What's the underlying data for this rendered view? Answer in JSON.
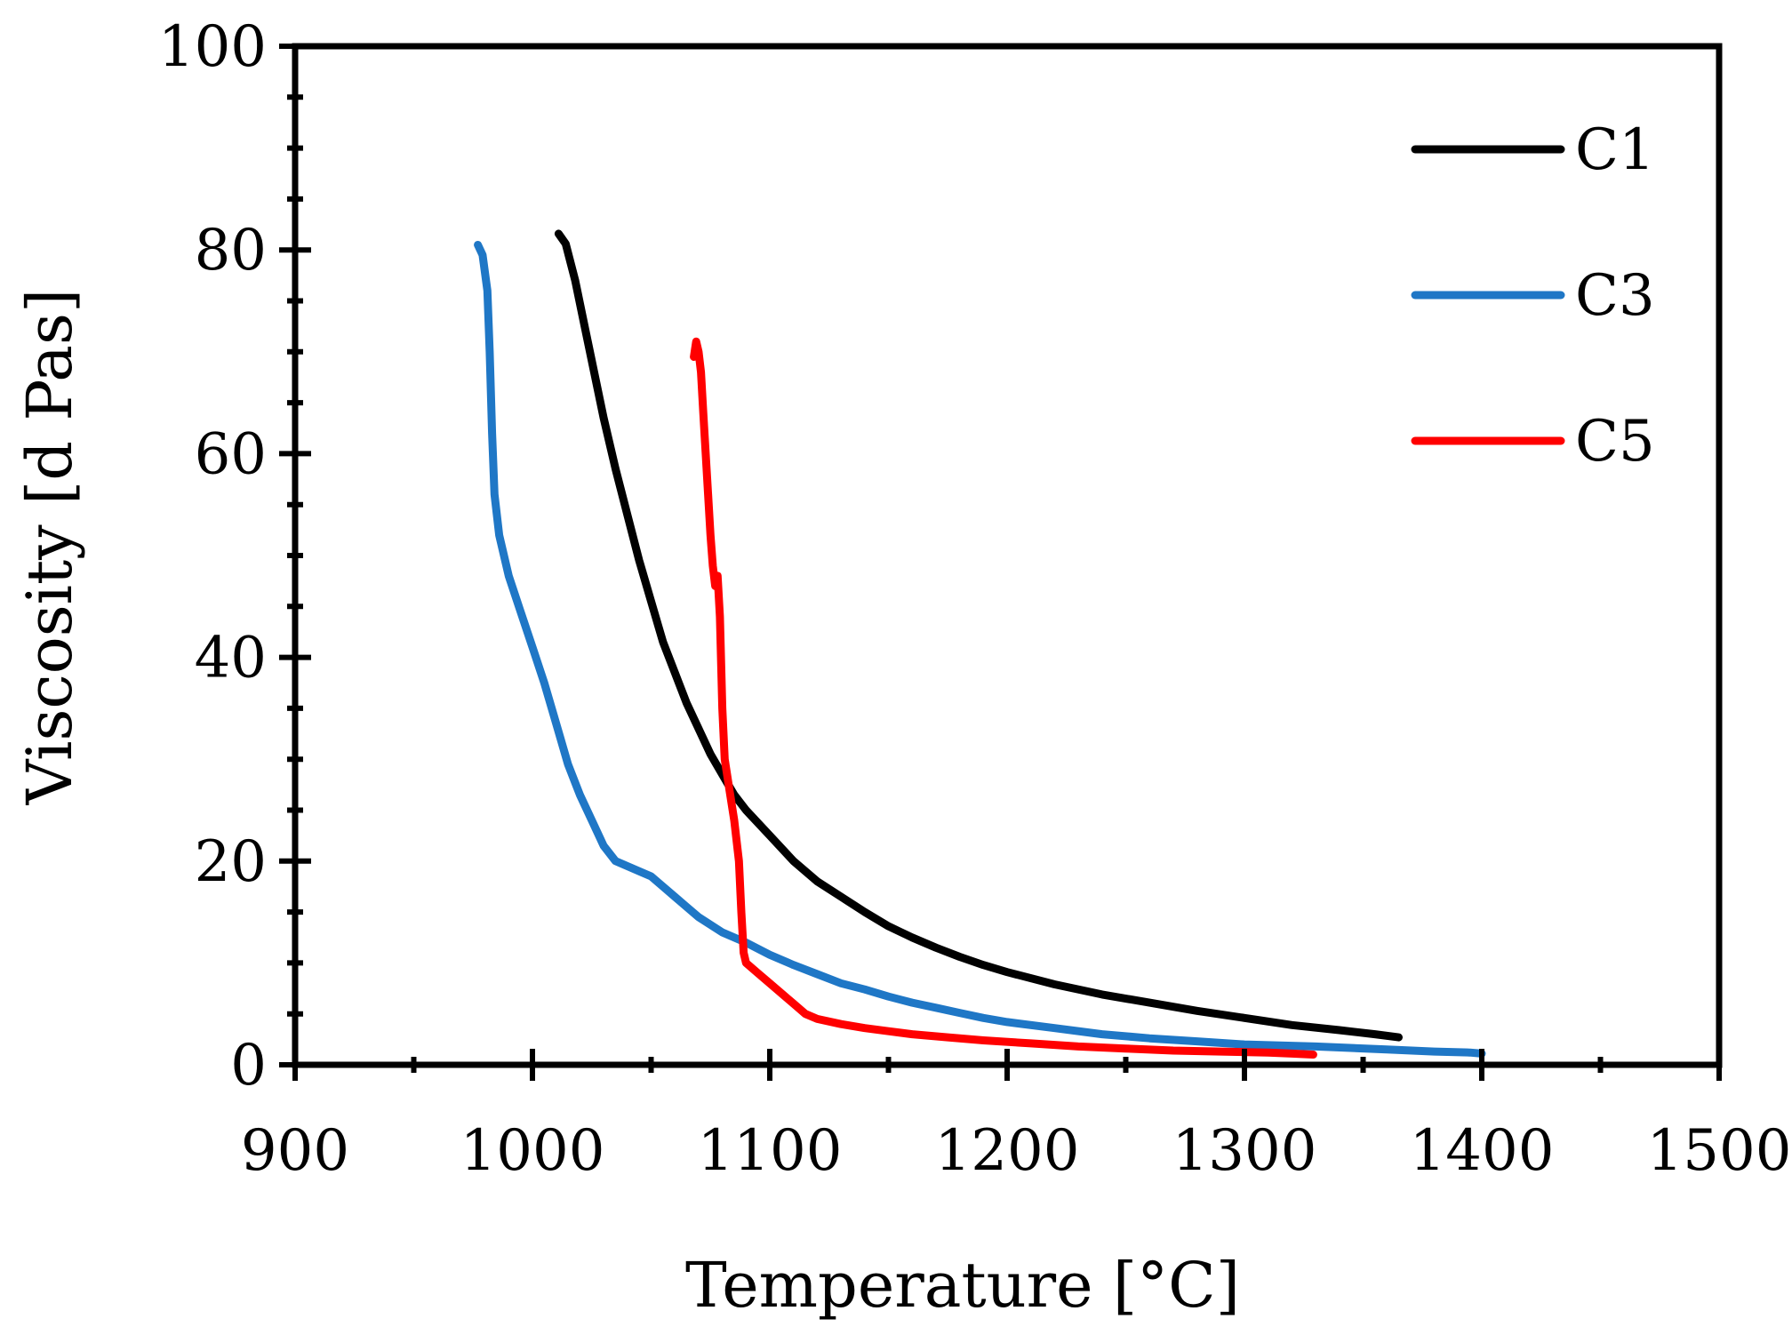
{
  "chart_data": {
    "type": "line",
    "title": "",
    "xlabel": "Temperature [°C]",
    "ylabel": "Viscosity [d Pas]",
    "xlim": [
      900,
      1500
    ],
    "ylim": [
      0,
      100
    ],
    "xticks": [
      900,
      1000,
      1100,
      1200,
      1300,
      1400,
      1500
    ],
    "yticks": [
      0,
      20,
      40,
      60,
      80,
      100
    ],
    "x_minor_step": 50,
    "y_minor_step": 5,
    "grid": false,
    "legend_position": "top-right",
    "series": [
      {
        "name": "C1",
        "color": "#000000",
        "points": [
          [
            1011,
            81.6
          ],
          [
            1014,
            80.6
          ],
          [
            1018,
            77
          ],
          [
            1022,
            72.5
          ],
          [
            1026,
            68
          ],
          [
            1030,
            63.5
          ],
          [
            1035,
            58.5
          ],
          [
            1040,
            54
          ],
          [
            1045,
            49.5
          ],
          [
            1050,
            45.5
          ],
          [
            1055,
            41.5
          ],
          [
            1060,
            38.5
          ],
          [
            1065,
            35.5
          ],
          [
            1070,
            33
          ],
          [
            1075,
            30.5
          ],
          [
            1080,
            28.5
          ],
          [
            1085,
            26.5
          ],
          [
            1090,
            25
          ],
          [
            1100,
            22.5
          ],
          [
            1110,
            20
          ],
          [
            1120,
            18
          ],
          [
            1130,
            16.5
          ],
          [
            1140,
            15
          ],
          [
            1150,
            13.6
          ],
          [
            1160,
            12.5
          ],
          [
            1170,
            11.5
          ],
          [
            1180,
            10.6
          ],
          [
            1190,
            9.8
          ],
          [
            1200,
            9.1
          ],
          [
            1220,
            7.9
          ],
          [
            1240,
            6.9
          ],
          [
            1260,
            6.1
          ],
          [
            1280,
            5.3
          ],
          [
            1300,
            4.6
          ],
          [
            1320,
            3.9
          ],
          [
            1340,
            3.4
          ],
          [
            1355,
            3
          ],
          [
            1365,
            2.7
          ]
        ]
      },
      {
        "name": "C3",
        "color": "#1f77c6",
        "points": [
          [
            977,
            80.5
          ],
          [
            979,
            79.5
          ],
          [
            981,
            76
          ],
          [
            982,
            70
          ],
          [
            983,
            62
          ],
          [
            984,
            56
          ],
          [
            986,
            52
          ],
          [
            990,
            48
          ],
          [
            995,
            44.5
          ],
          [
            1000,
            41
          ],
          [
            1005,
            37.5
          ],
          [
            1010,
            33.5
          ],
          [
            1015,
            29.5
          ],
          [
            1020,
            26.5
          ],
          [
            1025,
            24
          ],
          [
            1030,
            21.5
          ],
          [
            1035,
            20
          ],
          [
            1040,
            19.5
          ],
          [
            1045,
            19
          ],
          [
            1050,
            18.5
          ],
          [
            1055,
            17.5
          ],
          [
            1060,
            16.5
          ],
          [
            1065,
            15.5
          ],
          [
            1070,
            14.5
          ],
          [
            1080,
            13
          ],
          [
            1090,
            12
          ],
          [
            1100,
            10.8
          ],
          [
            1110,
            9.8
          ],
          [
            1120,
            8.9
          ],
          [
            1130,
            8
          ],
          [
            1140,
            7.4
          ],
          [
            1150,
            6.7
          ],
          [
            1160,
            6.1
          ],
          [
            1170,
            5.6
          ],
          [
            1180,
            5.1
          ],
          [
            1190,
            4.6
          ],
          [
            1200,
            4.2
          ],
          [
            1220,
            3.6
          ],
          [
            1240,
            3
          ],
          [
            1260,
            2.6
          ],
          [
            1280,
            2.3
          ],
          [
            1300,
            2
          ],
          [
            1330,
            1.8
          ],
          [
            1360,
            1.5
          ],
          [
            1380,
            1.3
          ],
          [
            1395,
            1.2
          ],
          [
            1400,
            1.1
          ]
        ]
      },
      {
        "name": "C5",
        "color": "#ff0000",
        "points": [
          [
            1068,
            69.5
          ],
          [
            1069,
            71
          ],
          [
            1070,
            70
          ],
          [
            1071,
            68
          ],
          [
            1072,
            64
          ],
          [
            1073,
            60
          ],
          [
            1074,
            56
          ],
          [
            1075,
            52
          ],
          [
            1076,
            49
          ],
          [
            1077,
            47
          ],
          [
            1078,
            48
          ],
          [
            1079,
            44
          ],
          [
            1080,
            35
          ],
          [
            1081,
            30
          ],
          [
            1083,
            27
          ],
          [
            1085,
            24
          ],
          [
            1087,
            20
          ],
          [
            1088,
            15
          ],
          [
            1089,
            11
          ],
          [
            1090,
            10
          ],
          [
            1095,
            9
          ],
          [
            1100,
            8
          ],
          [
            1105,
            7
          ],
          [
            1110,
            6
          ],
          [
            1115,
            5
          ],
          [
            1120,
            4.5
          ],
          [
            1130,
            4
          ],
          [
            1140,
            3.6
          ],
          [
            1150,
            3.3
          ],
          [
            1160,
            3
          ],
          [
            1175,
            2.7
          ],
          [
            1190,
            2.4
          ],
          [
            1210,
            2.1
          ],
          [
            1230,
            1.8
          ],
          [
            1250,
            1.6
          ],
          [
            1270,
            1.4
          ],
          [
            1290,
            1.3
          ],
          [
            1310,
            1.2
          ],
          [
            1320,
            1.1
          ],
          [
            1329,
            1
          ]
        ]
      }
    ]
  }
}
